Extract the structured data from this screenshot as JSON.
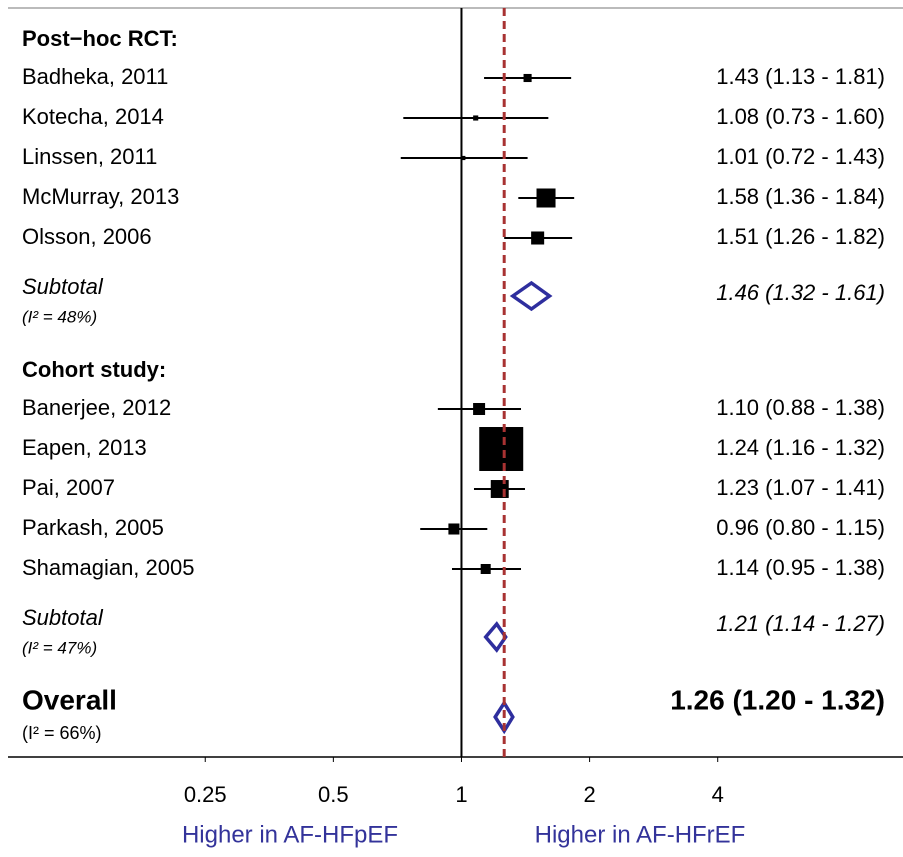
{
  "chart_data": {
    "type": "forest",
    "xlog": true,
    "xlim": [
      0.086,
      10.9
    ],
    "xticks": [
      0.25,
      0.5,
      1,
      2,
      4
    ],
    "reference_line": 1,
    "xlabel_left": "Higher in AF-HFpEF",
    "xlabel_right": "Higher in AF-HFrEF",
    "square_color": "#000000",
    "diamond_color": "#2e2e9e",
    "overall_line_color": "#a83232",
    "groups": [
      {
        "title": "Post−hoc RCT:",
        "studies": [
          {
            "name": "Badheka, 2011",
            "estimate": 1.43,
            "lower": 1.13,
            "upper": 1.81,
            "weight": 1.5,
            "label": "1.43 (1.13 - 1.81)"
          },
          {
            "name": "Kotecha, 2014",
            "estimate": 1.08,
            "lower": 0.73,
            "upper": 1.6,
            "weight": 0.6,
            "label": "1.08 (0.73 - 1.60)"
          },
          {
            "name": "Linssen, 2011",
            "estimate": 1.01,
            "lower": 0.72,
            "upper": 1.43,
            "weight": 0.4,
            "label": "1.01 (0.72 - 1.43)"
          },
          {
            "name": "McMurray, 2013",
            "estimate": 1.58,
            "lower": 1.36,
            "upper": 1.84,
            "weight": 8.3,
            "label": "1.58 (1.36 - 1.84)"
          },
          {
            "name": "Olsson, 2006",
            "estimate": 1.51,
            "lower": 1.26,
            "upper": 1.82,
            "weight": 3.9,
            "label": "1.51 (1.26 - 1.82)"
          }
        ],
        "subtotal": {
          "name": "Subtotal",
          "heterogeneity": "(I² = 48%)",
          "estimate": 1.46,
          "lower": 1.32,
          "upper": 1.61,
          "label": "1.46 (1.32 - 1.61)"
        }
      },
      {
        "title": "Cohort study:",
        "studies": [
          {
            "name": "Banerjee, 2012",
            "estimate": 1.1,
            "lower": 0.88,
            "upper": 1.38,
            "weight": 3.3,
            "label": "1.10 (0.88 - 1.38)"
          },
          {
            "name": "Eapen, 2013",
            "estimate": 1.24,
            "lower": 1.16,
            "upper": 1.32,
            "weight": 44.4,
            "label": "1.24 (1.16 - 1.32)"
          },
          {
            "name": "Pai, 2007",
            "estimate": 1.23,
            "lower": 1.07,
            "upper": 1.41,
            "weight": 7.4,
            "label": "1.23 (1.07 - 1.41)"
          },
          {
            "name": "Parkash, 2005",
            "estimate": 0.96,
            "lower": 0.8,
            "upper": 1.15,
            "weight": 2.8,
            "label": "0.96 (0.80 - 1.15)"
          },
          {
            "name": "Shamagian, 2005",
            "estimate": 1.14,
            "lower": 0.95,
            "upper": 1.38,
            "weight": 2.3,
            "label": "1.14 (0.95 - 1.38)"
          }
        ],
        "subtotal": {
          "name": "Subtotal",
          "heterogeneity": "(I² = 47%)",
          "estimate": 1.21,
          "lower": 1.14,
          "upper": 1.27,
          "label": "1.21 (1.14 - 1.27)"
        }
      }
    ],
    "overall": {
      "name": "Overall",
      "heterogeneity": "(I² = 66%)",
      "estimate": 1.26,
      "lower": 1.2,
      "upper": 1.32,
      "label": "1.26 (1.20 - 1.32)"
    }
  }
}
